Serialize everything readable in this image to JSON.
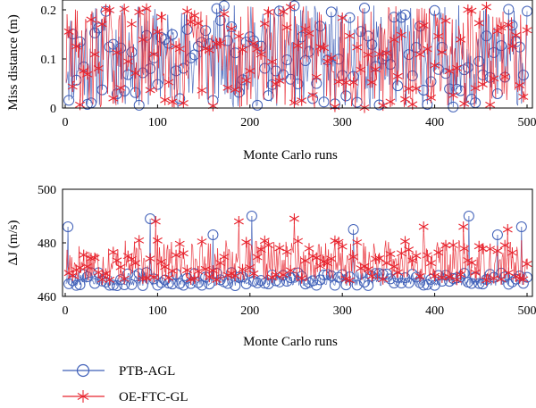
{
  "chart_data": [
    {
      "type": "scatter",
      "title": "",
      "xlabel": "Monte Carlo runs",
      "ylabel": "Miss distance (m)",
      "xlim": [
        0,
        500
      ],
      "ylim": [
        0,
        0.22
      ],
      "xticks": [
        "0",
        "100",
        "200",
        "300",
        "400",
        "500"
      ],
      "yticks": [
        "0",
        "0.1",
        "0.2"
      ],
      "grid": false,
      "x": "Monte Carlo run index 1–500",
      "series": [
        {
          "name": "PTB-AGL",
          "marker": "circle",
          "color": "#3f5fb8",
          "style": "stems",
          "value_range": [
            0.0,
            0.21
          ],
          "seed": 11
        },
        {
          "name": "OE-FTC-GL",
          "marker": "asterisk",
          "color": "#e8252f",
          "style": "stems",
          "value_range": [
            0.0,
            0.21
          ],
          "seed": 29
        }
      ]
    },
    {
      "type": "scatter",
      "title": "",
      "xlabel": "Monte Carlo runs",
      "ylabel": "ΔJ (m/s)",
      "xlim": [
        0,
        500
      ],
      "ylim": [
        460,
        500
      ],
      "xticks": [
        "0",
        "100",
        "200",
        "300",
        "400",
        "500"
      ],
      "yticks": [
        "460",
        "480",
        "500"
      ],
      "grid": false,
      "series": [
        {
          "name": "PTB-AGL",
          "marker": "circle",
          "color": "#3f5fb8",
          "style": "stems",
          "typical_range": [
            464,
            469
          ],
          "peaks": [
            [
              3,
              486
            ],
            [
              92,
              489
            ],
            [
              160,
              483
            ],
            [
              202,
              490
            ],
            [
              312,
              485
            ],
            [
              437,
              490
            ],
            [
              468,
              483
            ],
            [
              494,
              486
            ]
          ],
          "seed": 5
        },
        {
          "name": "OE-FTC-GL",
          "marker": "asterisk",
          "color": "#e8252f",
          "style": "stems",
          "typical_range": [
            466,
            481
          ],
          "peaks": [
            [
              98,
              488
            ],
            [
              188,
              488
            ],
            [
              248,
              489
            ],
            [
              388,
              486
            ],
            [
              431,
              486
            ],
            [
              479,
              485
            ]
          ],
          "seed": 17
        }
      ]
    }
  ],
  "legend": {
    "position": "bottom-left",
    "entries": [
      {
        "label": "PTB-AGL",
        "marker": "circle",
        "color": "#3f5fb8"
      },
      {
        "label": "OE-FTC-GL",
        "marker": "asterisk",
        "color": "#e8252f"
      }
    ]
  }
}
